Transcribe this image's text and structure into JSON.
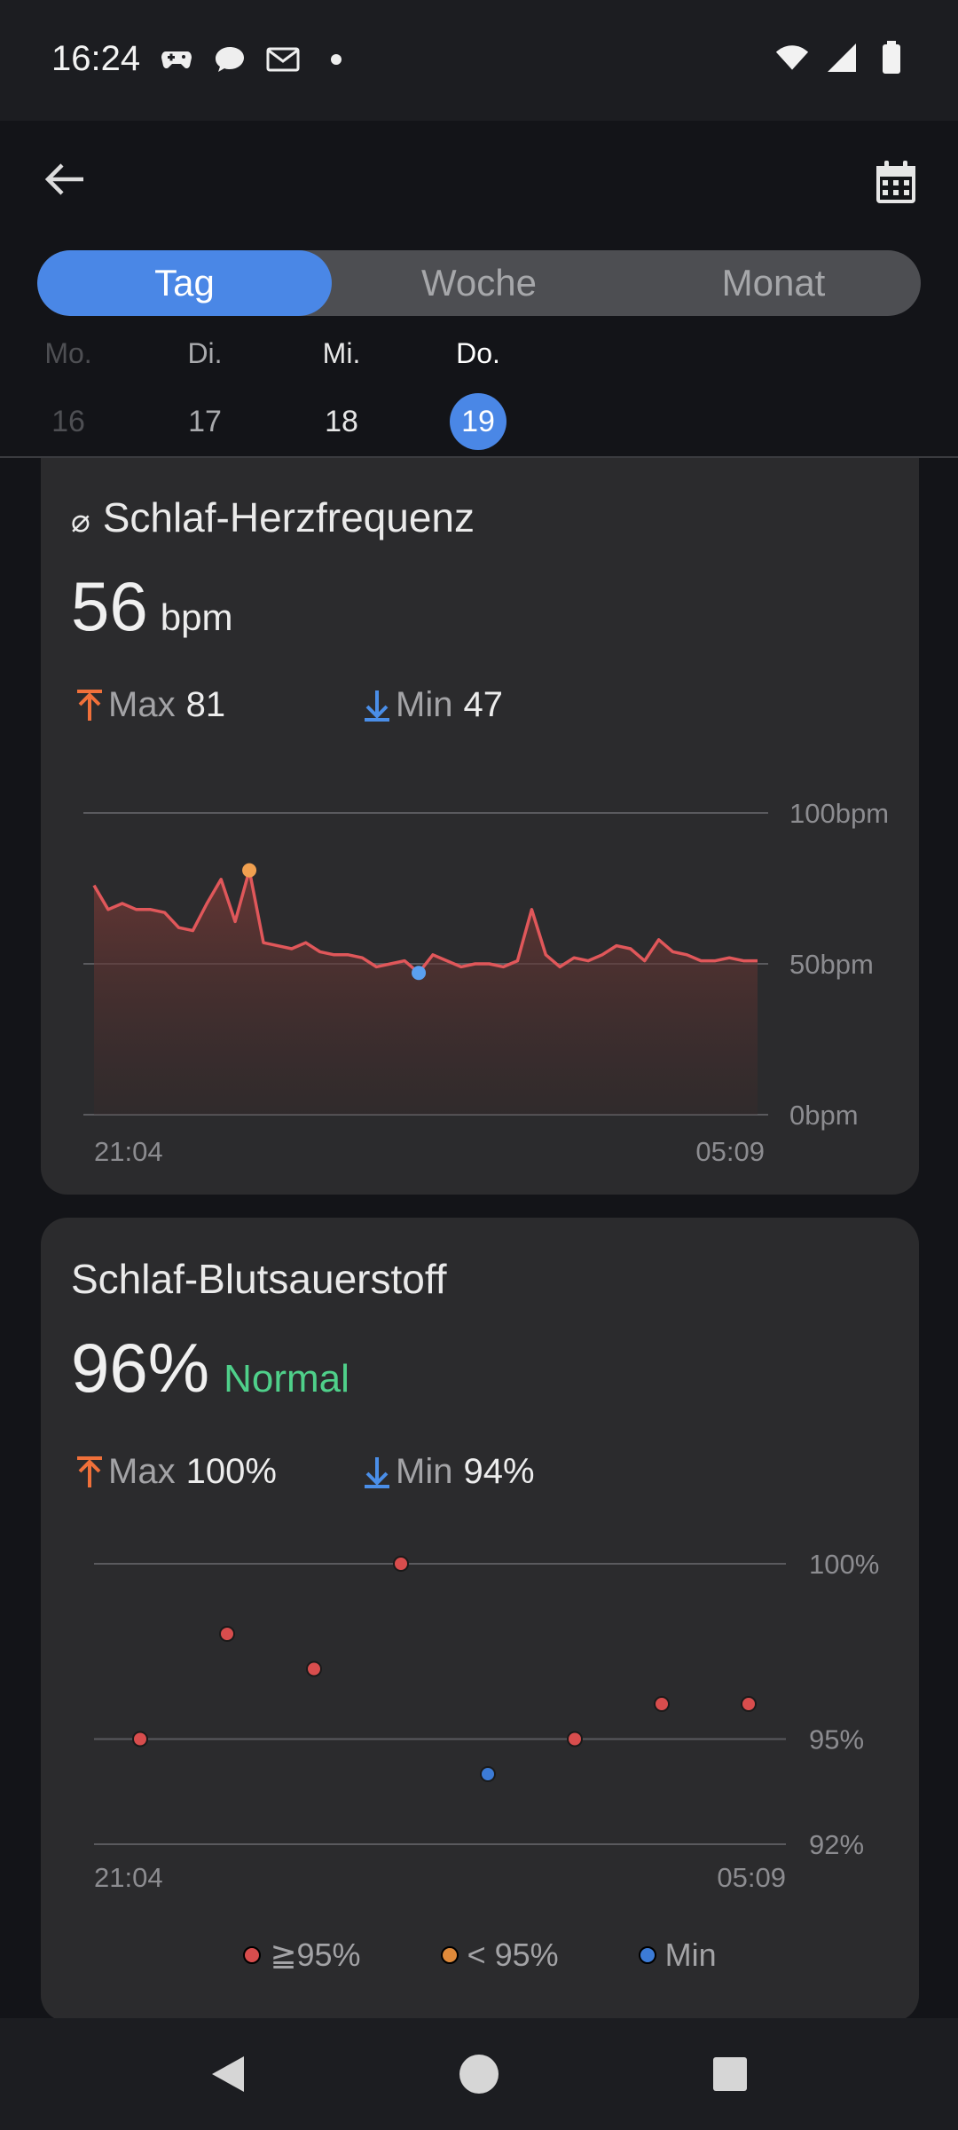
{
  "status_bar": {
    "time": "16:24"
  },
  "header": {
    "tabs": [
      {
        "label": "Tag",
        "active": true
      },
      {
        "label": "Woche",
        "active": false
      },
      {
        "label": "Monat",
        "active": false
      }
    ],
    "days": [
      {
        "name": "Mo.",
        "num": "16",
        "state": "disabled"
      },
      {
        "name": "Di.",
        "num": "17",
        "state": "normal"
      },
      {
        "name": "Mi.",
        "num": "18",
        "state": "normal"
      },
      {
        "name": "Do.",
        "num": "19",
        "state": "selected"
      }
    ]
  },
  "heart_rate": {
    "title_symbol": "⌀",
    "title": "Schlaf-Herzfrequenz",
    "value": "56",
    "unit": "bpm",
    "max_label": "Max",
    "max_value": "81",
    "min_label": "Min",
    "min_value": "47"
  },
  "spo2": {
    "title": "Schlaf-Blutsauerstoff",
    "value": "96%",
    "status": "Normal",
    "max_label": "Max",
    "max_value": "100%",
    "min_label": "Min",
    "min_value": "94%"
  },
  "legend": [
    {
      "label": "≧95%",
      "color": "#d84d4d"
    },
    {
      "label": "< 95%",
      "color": "#e08a3a"
    },
    {
      "label": "Min",
      "color": "#3c7bd6"
    }
  ],
  "colors": {
    "accent": "#4a87e6",
    "max_arrow": "#f0703a",
    "min_arrow": "#4a8ee8",
    "hr_line": "#e0575a",
    "normal": "#4fd08a"
  },
  "chart_data": [
    {
      "type": "area",
      "title": "Schlaf-Herzfrequenz",
      "xlabel": "",
      "ylabel": "",
      "x_labels": [
        "21:04",
        "05:09"
      ],
      "y_ticks": [
        "100bpm",
        "50bpm",
        "0bpm"
      ],
      "y_tick_values": [
        100,
        50,
        0
      ],
      "ylim": [
        0,
        100
      ],
      "grid": true,
      "values": [
        76,
        68,
        70,
        68,
        68,
        67,
        62,
        61,
        70,
        78,
        64,
        81,
        57,
        56,
        55,
        57,
        54,
        53,
        53,
        52,
        49,
        50,
        51,
        47,
        53,
        51,
        49,
        50,
        50,
        49,
        51,
        68,
        53,
        49,
        52,
        51,
        53,
        56,
        55,
        51,
        58,
        54,
        53,
        51,
        51,
        52,
        51,
        51
      ],
      "max_point": {
        "index": 11,
        "value": 81
      },
      "min_point": {
        "index": 23,
        "value": 47
      }
    },
    {
      "type": "scatter",
      "title": "Schlaf-Blutsauerstoff",
      "xlabel": "",
      "ylabel": "",
      "x_labels": [
        "21:04",
        "05:09"
      ],
      "y_ticks": [
        "100%",
        "95%",
        "92%"
      ],
      "y_tick_values": [
        100,
        95,
        92
      ],
      "ylim": [
        92,
        100
      ],
      "grid": true,
      "points": [
        {
          "value": 95,
          "category": ">=95"
        },
        {
          "value": 98,
          "category": ">=95"
        },
        {
          "value": 97,
          "category": ">=95"
        },
        {
          "value": 100,
          "category": ">=95"
        },
        {
          "value": 94,
          "category": "min"
        },
        {
          "value": 95,
          "category": ">=95"
        },
        {
          "value": 96,
          "category": ">=95"
        },
        {
          "value": 96,
          "category": ">=95"
        }
      ]
    }
  ]
}
